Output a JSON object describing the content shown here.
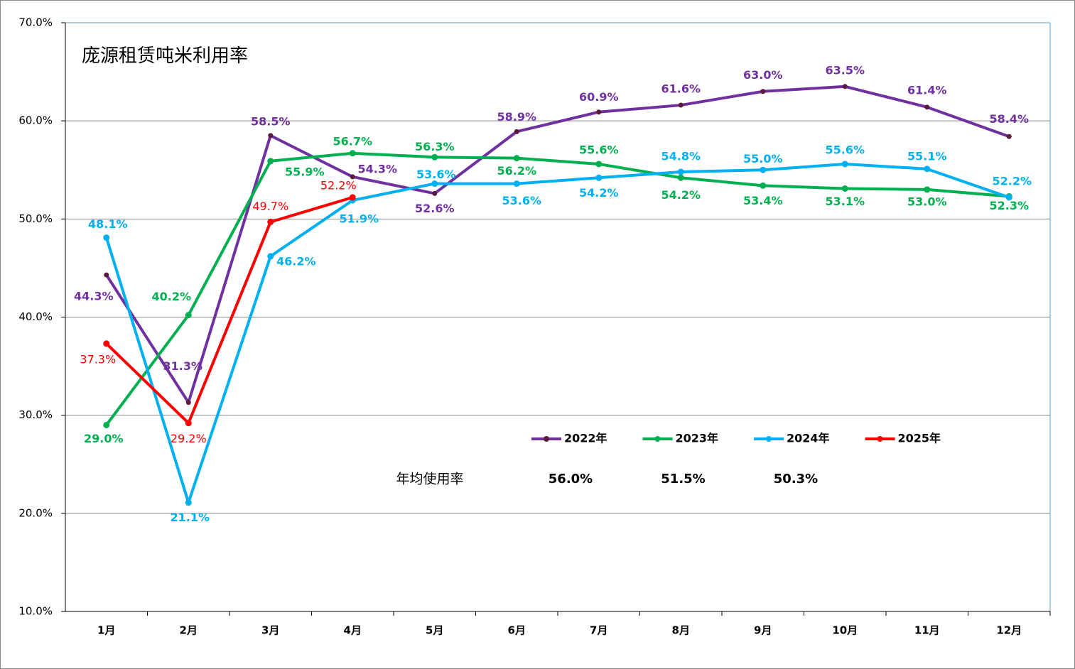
{
  "chart_data": {
    "type": "line",
    "title": "庞源租赁吨米利用率",
    "categories": [
      "1月",
      "2月",
      "3月",
      "4月",
      "5月",
      "6月",
      "7月",
      "8月",
      "9月",
      "10月",
      "11月",
      "12月"
    ],
    "ylim": [
      10,
      70
    ],
    "yticks": [
      {
        "value": 10,
        "label": "10.0%"
      },
      {
        "value": 20,
        "label": "20.0%"
      },
      {
        "value": 30,
        "label": "30.0%"
      },
      {
        "value": 40,
        "label": "40.0%"
      },
      {
        "value": 50,
        "label": "50.0%"
      },
      {
        "value": 60,
        "label": "60.0%"
      },
      {
        "value": 70,
        "label": "70.0%"
      }
    ],
    "grid": true,
    "series": [
      {
        "name": "2022年",
        "color": "#7030a0",
        "values": [
          44.3,
          31.3,
          58.5,
          54.3,
          52.6,
          58.9,
          60.9,
          61.6,
          63.0,
          63.5,
          61.4,
          58.4
        ],
        "value_labels": [
          "44.3%",
          "31.3%",
          "58.5%",
          "54.3%",
          "52.6%",
          "58.9%",
          "60.9%",
          "61.6%",
          "63.0%",
          "63.5%",
          "61.4%",
          "58.4%"
        ]
      },
      {
        "name": "2023年",
        "color": "#00b050",
        "values": [
          29.0,
          40.2,
          55.9,
          56.7,
          56.3,
          56.2,
          55.6,
          54.2,
          53.4,
          53.1,
          53.0,
          52.3
        ],
        "value_labels": [
          "29.0%",
          "40.2%",
          "55.9%",
          "56.7%",
          "56.3%",
          "56.2%",
          "55.6%",
          "54.2%",
          "53.4%",
          "53.1%",
          "53.0%",
          "52.3%"
        ]
      },
      {
        "name": "2024年",
        "color": "#00b0f0",
        "values": [
          48.1,
          21.1,
          46.2,
          51.9,
          53.6,
          53.6,
          54.2,
          54.8,
          55.0,
          55.6,
          55.1,
          52.2
        ],
        "value_labels": [
          "48.1%",
          "21.1%",
          "46.2%",
          "51.9%",
          "53.6%",
          "53.6%",
          "54.2%",
          "54.8%",
          "55.0%",
          "55.6%",
          "55.1%",
          "52.2%"
        ]
      },
      {
        "name": "2025年",
        "color": "#ff0000",
        "values": [
          37.3,
          29.2,
          49.7,
          52.2,
          null,
          null,
          null,
          null,
          null,
          null,
          null,
          null
        ],
        "value_labels": [
          "37.3%",
          "29.2%",
          "49.7%",
          "52.2%",
          null,
          null,
          null,
          null,
          null,
          null,
          null,
          null
        ]
      }
    ],
    "annotation": {
      "label": "年均使用率",
      "values": [
        "56.0%",
        "51.5%",
        "50.3%"
      ]
    }
  }
}
